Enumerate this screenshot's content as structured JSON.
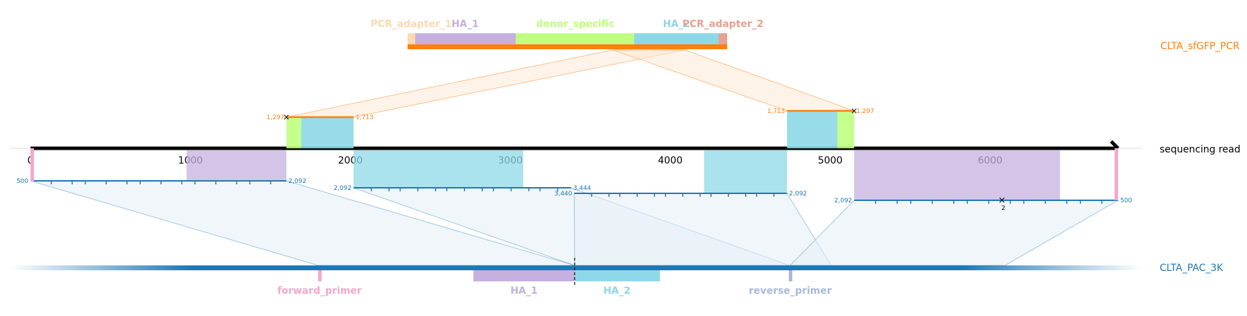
{
  "colors": {
    "read": "#000000",
    "plasmid": "#1f77b4",
    "pcr": "#ff7f0e",
    "PCR_adapter": "#fdd9b0",
    "PCR_adapter_2": "#e8a090",
    "HA_1": "#c5b0e0",
    "HA_2": "#8dd8e8",
    "donor_specific": "#bfff80",
    "forward_primer": "#f7a6cf",
    "reverse_primer": "#aab8dc"
  },
  "tracks": {
    "pcr_label": "CLTA_sfGFP_PCR",
    "read_label": "sequencing read",
    "plasmid_label": "CLTA_PAC_3K"
  },
  "pcr_features": [
    {
      "label": "PCR_adapter_1",
      "color_key": "PCR_adapter"
    },
    {
      "label": "HA_1",
      "color_key": "HA_1"
    },
    {
      "label": "donor_specific",
      "color_key": "donor_specific"
    },
    {
      "label": "HA_2",
      "color_key": "HA_2"
    },
    {
      "label": "PCR_adapter_2",
      "color_key": "PCR_adapter_2"
    }
  ],
  "read_axis": {
    "ticks": [
      "0",
      "1000",
      "2000",
      "3000",
      "4000",
      "5000",
      "6000"
    ],
    "max": 6800
  },
  "pcr_alignments": [
    {
      "from": 1600,
      "to": 2020,
      "left_label": "1,297",
      "right_label": "1,713"
    },
    {
      "from": 4730,
      "to": 5150,
      "left_label": "1,713",
      "right_label": "1,297"
    }
  ],
  "plasmid_alignments": [
    {
      "from": 0,
      "to": 1600,
      "left_label": "500",
      "right_label": "2,092"
    },
    {
      "from": 2020,
      "to": 3380,
      "left_label": "2,092",
      "right_label": "3,444"
    },
    {
      "from": 3400,
      "to": 4730,
      "left_label": "3,440",
      "right_label": "2,092"
    },
    {
      "from": 5150,
      "to": 6800,
      "left_label": "2,092",
      "right_label": "500",
      "mark_label": "2"
    }
  ],
  "plasmid_features": [
    {
      "label": "forward_primer",
      "color_key": "forward_primer"
    },
    {
      "label": "HA_1",
      "color_key": "HA_1"
    },
    {
      "label": "HA_2",
      "color_key": "HA_2"
    },
    {
      "label": "reverse_primer",
      "color_key": "reverse_primer"
    }
  ]
}
